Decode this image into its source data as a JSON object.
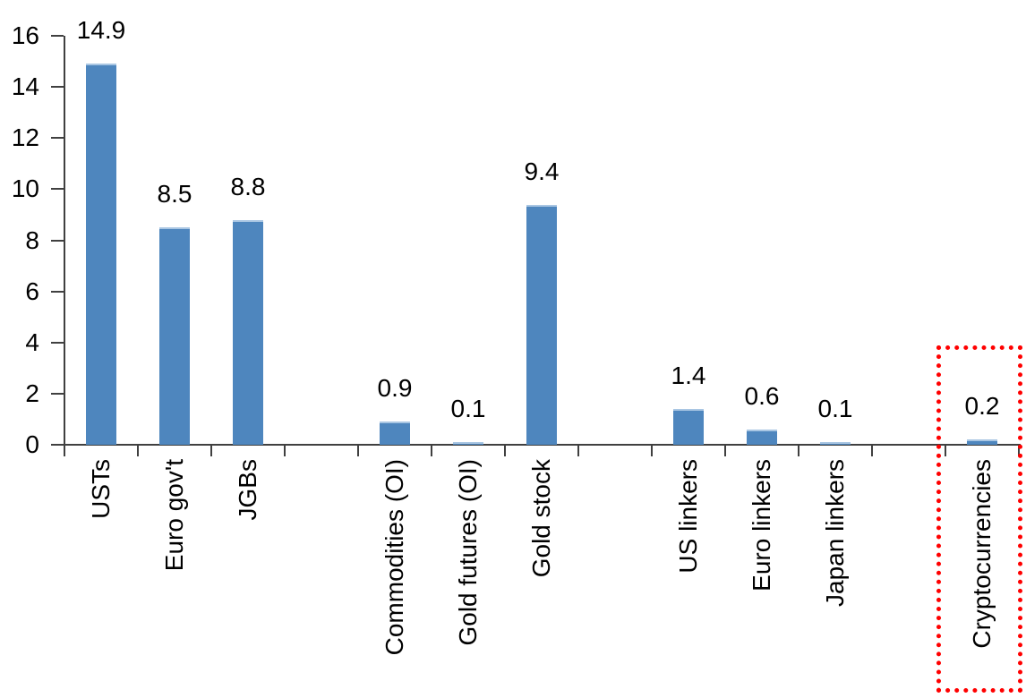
{
  "chart_data": {
    "type": "bar",
    "title": "",
    "xlabel": "",
    "ylabel": "",
    "categories": [
      "USTs",
      "Euro gov't",
      "JGBs",
      "Commodities (OI)",
      "Gold futures (OI)",
      "Gold stock",
      "US linkers",
      "Euro linkers",
      "Japan linkers",
      "Cryptocurrencies"
    ],
    "values": [
      14.9,
      8.5,
      8.8,
      0.9,
      0.1,
      9.4,
      1.4,
      0.6,
      0.1,
      0.2
    ],
    "data_labels": [
      "14.9",
      "8.5",
      "8.8",
      "0.9",
      "0.1",
      "9.4",
      "1.4",
      "0.6",
      "0.1",
      "0.2"
    ],
    "slot_indices": [
      0,
      1,
      2,
      4,
      5,
      6,
      8,
      9,
      10,
      12
    ],
    "total_slots": 13,
    "group_gaps_after": [
      "JGBs",
      "Gold stock",
      "Japan linkers"
    ],
    "yticks": [
      0,
      2,
      4,
      6,
      8,
      10,
      12,
      14,
      16
    ],
    "ylim": [
      0,
      16
    ],
    "grid": false,
    "legend": false,
    "x_label_rotation_deg": -90,
    "bar_color": "#4E86BE",
    "bar_top_highlight": "#A9C6E3",
    "axis_color": "#404040",
    "text_color": "#000000",
    "highlight_box": {
      "category": "Cryptocurrencies",
      "color": "#FF0000",
      "style": "dotted"
    }
  }
}
